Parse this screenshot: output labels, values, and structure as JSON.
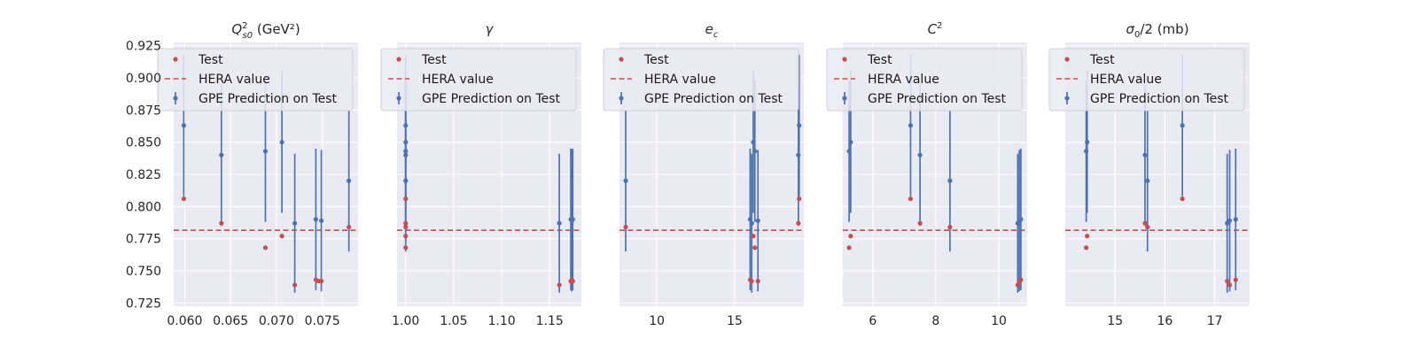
{
  "chart_data": {
    "type": "scatter",
    "shared_y": {
      "ylim": [
        0.7225,
        0.9275
      ],
      "ticks": [
        0.725,
        0.75,
        0.775,
        0.8,
        0.825,
        0.85,
        0.875,
        0.9,
        0.925
      ],
      "tick_labels": [
        "0.725",
        "0.750",
        "0.775",
        "0.800",
        "0.825",
        "0.850",
        "0.875",
        "0.900",
        "0.925"
      ]
    },
    "hera_value": 0.7815,
    "legend": {
      "placement": "top",
      "items": [
        "Test",
        "HERA value",
        "GPE Prediction on Test"
      ]
    },
    "colors": {
      "test": "#c44e52",
      "hera": "#c44e52",
      "gpe": "#4c72b0",
      "axes_bg": "#eaeaf2",
      "grid": "#ffffff"
    },
    "panels": [
      {
        "title": "Q²s0 (GeV²)",
        "xlim": [
          0.0588,
          0.0789
        ],
        "xticks": [
          0.06,
          0.065,
          0.07,
          0.075
        ],
        "xtick_labels": [
          "0.060",
          "0.065",
          "0.070",
          "0.075"
        ],
        "test": [
          {
            "x": 0.0599,
            "y": 0.806
          },
          {
            "x": 0.064,
            "y": 0.787
          },
          {
            "x": 0.0688,
            "y": 0.768
          },
          {
            "x": 0.0706,
            "y": 0.777
          },
          {
            "x": 0.072,
            "y": 0.739
          },
          {
            "x": 0.0743,
            "y": 0.743
          },
          {
            "x": 0.0746,
            "y": 0.742
          },
          {
            "x": 0.0749,
            "y": 0.742
          },
          {
            "x": 0.0779,
            "y": 0.784
          }
        ],
        "gpe": [
          {
            "x": 0.0599,
            "y": 0.863,
            "lo": 0.808,
            "hi": 0.918
          },
          {
            "x": 0.064,
            "y": 0.84,
            "lo": 0.785,
            "hi": 0.895
          },
          {
            "x": 0.0688,
            "y": 0.843,
            "lo": 0.788,
            "hi": 0.898
          },
          {
            "x": 0.0706,
            "y": 0.85,
            "lo": 0.795,
            "hi": 0.905
          },
          {
            "x": 0.072,
            "y": 0.787,
            "lo": 0.733,
            "hi": 0.841
          },
          {
            "x": 0.0743,
            "y": 0.79,
            "lo": 0.735,
            "hi": 0.845
          },
          {
            "x": 0.0749,
            "y": 0.789,
            "lo": 0.734,
            "hi": 0.844
          },
          {
            "x": 0.0779,
            "y": 0.82,
            "lo": 0.765,
            "hi": 0.875
          }
        ]
      },
      {
        "title": "γ",
        "xlim": [
          0.991,
          1.183
        ],
        "xticks": [
          1.0,
          1.05,
          1.1,
          1.15
        ],
        "xtick_labels": [
          "1.00",
          "1.05",
          "1.10",
          "1.15"
        ],
        "test": [
          {
            "x": 1.0,
            "y": 0.806
          },
          {
            "x": 1.0,
            "y": 0.787
          },
          {
            "x": 1.0,
            "y": 0.784
          },
          {
            "x": 1.0,
            "y": 0.777
          },
          {
            "x": 1.0,
            "y": 0.768
          },
          {
            "x": 1.16,
            "y": 0.739
          },
          {
            "x": 1.172,
            "y": 0.742
          },
          {
            "x": 1.173,
            "y": 0.743
          },
          {
            "x": 1.174,
            "y": 0.742
          }
        ],
        "gpe": [
          {
            "x": 1.0,
            "y": 0.863,
            "lo": 0.808,
            "hi": 0.918
          },
          {
            "x": 1.0,
            "y": 0.85,
            "lo": 0.795,
            "hi": 0.905
          },
          {
            "x": 1.0,
            "y": 0.843,
            "lo": 0.788,
            "hi": 0.898
          },
          {
            "x": 1.0,
            "y": 0.84,
            "lo": 0.785,
            "hi": 0.895
          },
          {
            "x": 1.0,
            "y": 0.82,
            "lo": 0.765,
            "hi": 0.875
          },
          {
            "x": 1.16,
            "y": 0.787,
            "lo": 0.733,
            "hi": 0.841
          },
          {
            "x": 1.172,
            "y": 0.79,
            "lo": 0.735,
            "hi": 0.845
          },
          {
            "x": 1.173,
            "y": 0.789,
            "lo": 0.734,
            "hi": 0.844
          },
          {
            "x": 1.174,
            "y": 0.79,
            "lo": 0.735,
            "hi": 0.845
          }
        ]
      },
      {
        "title": "e_c",
        "xlim": [
          7.6,
          19.45
        ],
        "xticks": [
          10,
          15
        ],
        "xtick_labels": [
          "10",
          "15"
        ],
        "test": [
          {
            "x": 8.0,
            "y": 0.784
          },
          {
            "x": 16.0,
            "y": 0.743
          },
          {
            "x": 16.1,
            "y": 0.742
          },
          {
            "x": 16.2,
            "y": 0.777
          },
          {
            "x": 16.3,
            "y": 0.768
          },
          {
            "x": 16.5,
            "y": 0.742
          },
          {
            "x": 19.1,
            "y": 0.787
          },
          {
            "x": 19.15,
            "y": 0.806
          }
        ],
        "gpe": [
          {
            "x": 8.0,
            "y": 0.82,
            "lo": 0.765,
            "hi": 0.875
          },
          {
            "x": 16.0,
            "y": 0.79,
            "lo": 0.735,
            "hi": 0.845
          },
          {
            "x": 16.1,
            "y": 0.787,
            "lo": 0.733,
            "hi": 0.841
          },
          {
            "x": 16.2,
            "y": 0.85,
            "lo": 0.795,
            "hi": 0.905
          },
          {
            "x": 16.3,
            "y": 0.843,
            "lo": 0.788,
            "hi": 0.898
          },
          {
            "x": 16.5,
            "y": 0.789,
            "lo": 0.734,
            "hi": 0.844
          },
          {
            "x": 19.1,
            "y": 0.84,
            "lo": 0.785,
            "hi": 0.895
          },
          {
            "x": 19.15,
            "y": 0.863,
            "lo": 0.808,
            "hi": 0.918
          }
        ]
      },
      {
        "title": "C²",
        "xlim": [
          5.05,
          10.9
        ],
        "xticks": [
          6,
          8,
          10
        ],
        "xtick_labels": [
          "6",
          "8",
          "10"
        ],
        "test": [
          {
            "x": 5.25,
            "y": 0.768
          },
          {
            "x": 5.3,
            "y": 0.777
          },
          {
            "x": 7.2,
            "y": 0.806
          },
          {
            "x": 7.5,
            "y": 0.787
          },
          {
            "x": 8.45,
            "y": 0.784
          },
          {
            "x": 10.6,
            "y": 0.739
          },
          {
            "x": 10.65,
            "y": 0.742
          },
          {
            "x": 10.7,
            "y": 0.743
          }
        ],
        "gpe": [
          {
            "x": 5.25,
            "y": 0.843,
            "lo": 0.788,
            "hi": 0.898
          },
          {
            "x": 5.3,
            "y": 0.85,
            "lo": 0.795,
            "hi": 0.905
          },
          {
            "x": 7.2,
            "y": 0.863,
            "lo": 0.808,
            "hi": 0.918
          },
          {
            "x": 7.5,
            "y": 0.84,
            "lo": 0.785,
            "hi": 0.895
          },
          {
            "x": 8.45,
            "y": 0.82,
            "lo": 0.765,
            "hi": 0.875
          },
          {
            "x": 10.6,
            "y": 0.787,
            "lo": 0.733,
            "hi": 0.841
          },
          {
            "x": 10.65,
            "y": 0.789,
            "lo": 0.734,
            "hi": 0.844
          },
          {
            "x": 10.7,
            "y": 0.79,
            "lo": 0.735,
            "hi": 0.845
          }
        ]
      },
      {
        "title": "σ0/2 (mb)",
        "xlim": [
          14.0,
          17.7
        ],
        "xticks": [
          15,
          16,
          17
        ],
        "xtick_labels": [
          "15",
          "16",
          "17"
        ],
        "test": [
          {
            "x": 14.42,
            "y": 0.768
          },
          {
            "x": 14.44,
            "y": 0.777
          },
          {
            "x": 15.6,
            "y": 0.787
          },
          {
            "x": 15.65,
            "y": 0.784
          },
          {
            "x": 16.35,
            "y": 0.806
          },
          {
            "x": 17.25,
            "y": 0.742
          },
          {
            "x": 17.3,
            "y": 0.739
          },
          {
            "x": 17.42,
            "y": 0.743
          }
        ],
        "gpe": [
          {
            "x": 14.42,
            "y": 0.843,
            "lo": 0.788,
            "hi": 0.898
          },
          {
            "x": 14.44,
            "y": 0.85,
            "lo": 0.795,
            "hi": 0.905
          },
          {
            "x": 15.6,
            "y": 0.84,
            "lo": 0.785,
            "hi": 0.895
          },
          {
            "x": 15.65,
            "y": 0.82,
            "lo": 0.765,
            "hi": 0.875
          },
          {
            "x": 16.35,
            "y": 0.863,
            "lo": 0.808,
            "hi": 0.918
          },
          {
            "x": 17.25,
            "y": 0.787,
            "lo": 0.733,
            "hi": 0.841
          },
          {
            "x": 17.3,
            "y": 0.789,
            "lo": 0.734,
            "hi": 0.844
          },
          {
            "x": 17.42,
            "y": 0.79,
            "lo": 0.735,
            "hi": 0.845
          }
        ]
      }
    ]
  }
}
